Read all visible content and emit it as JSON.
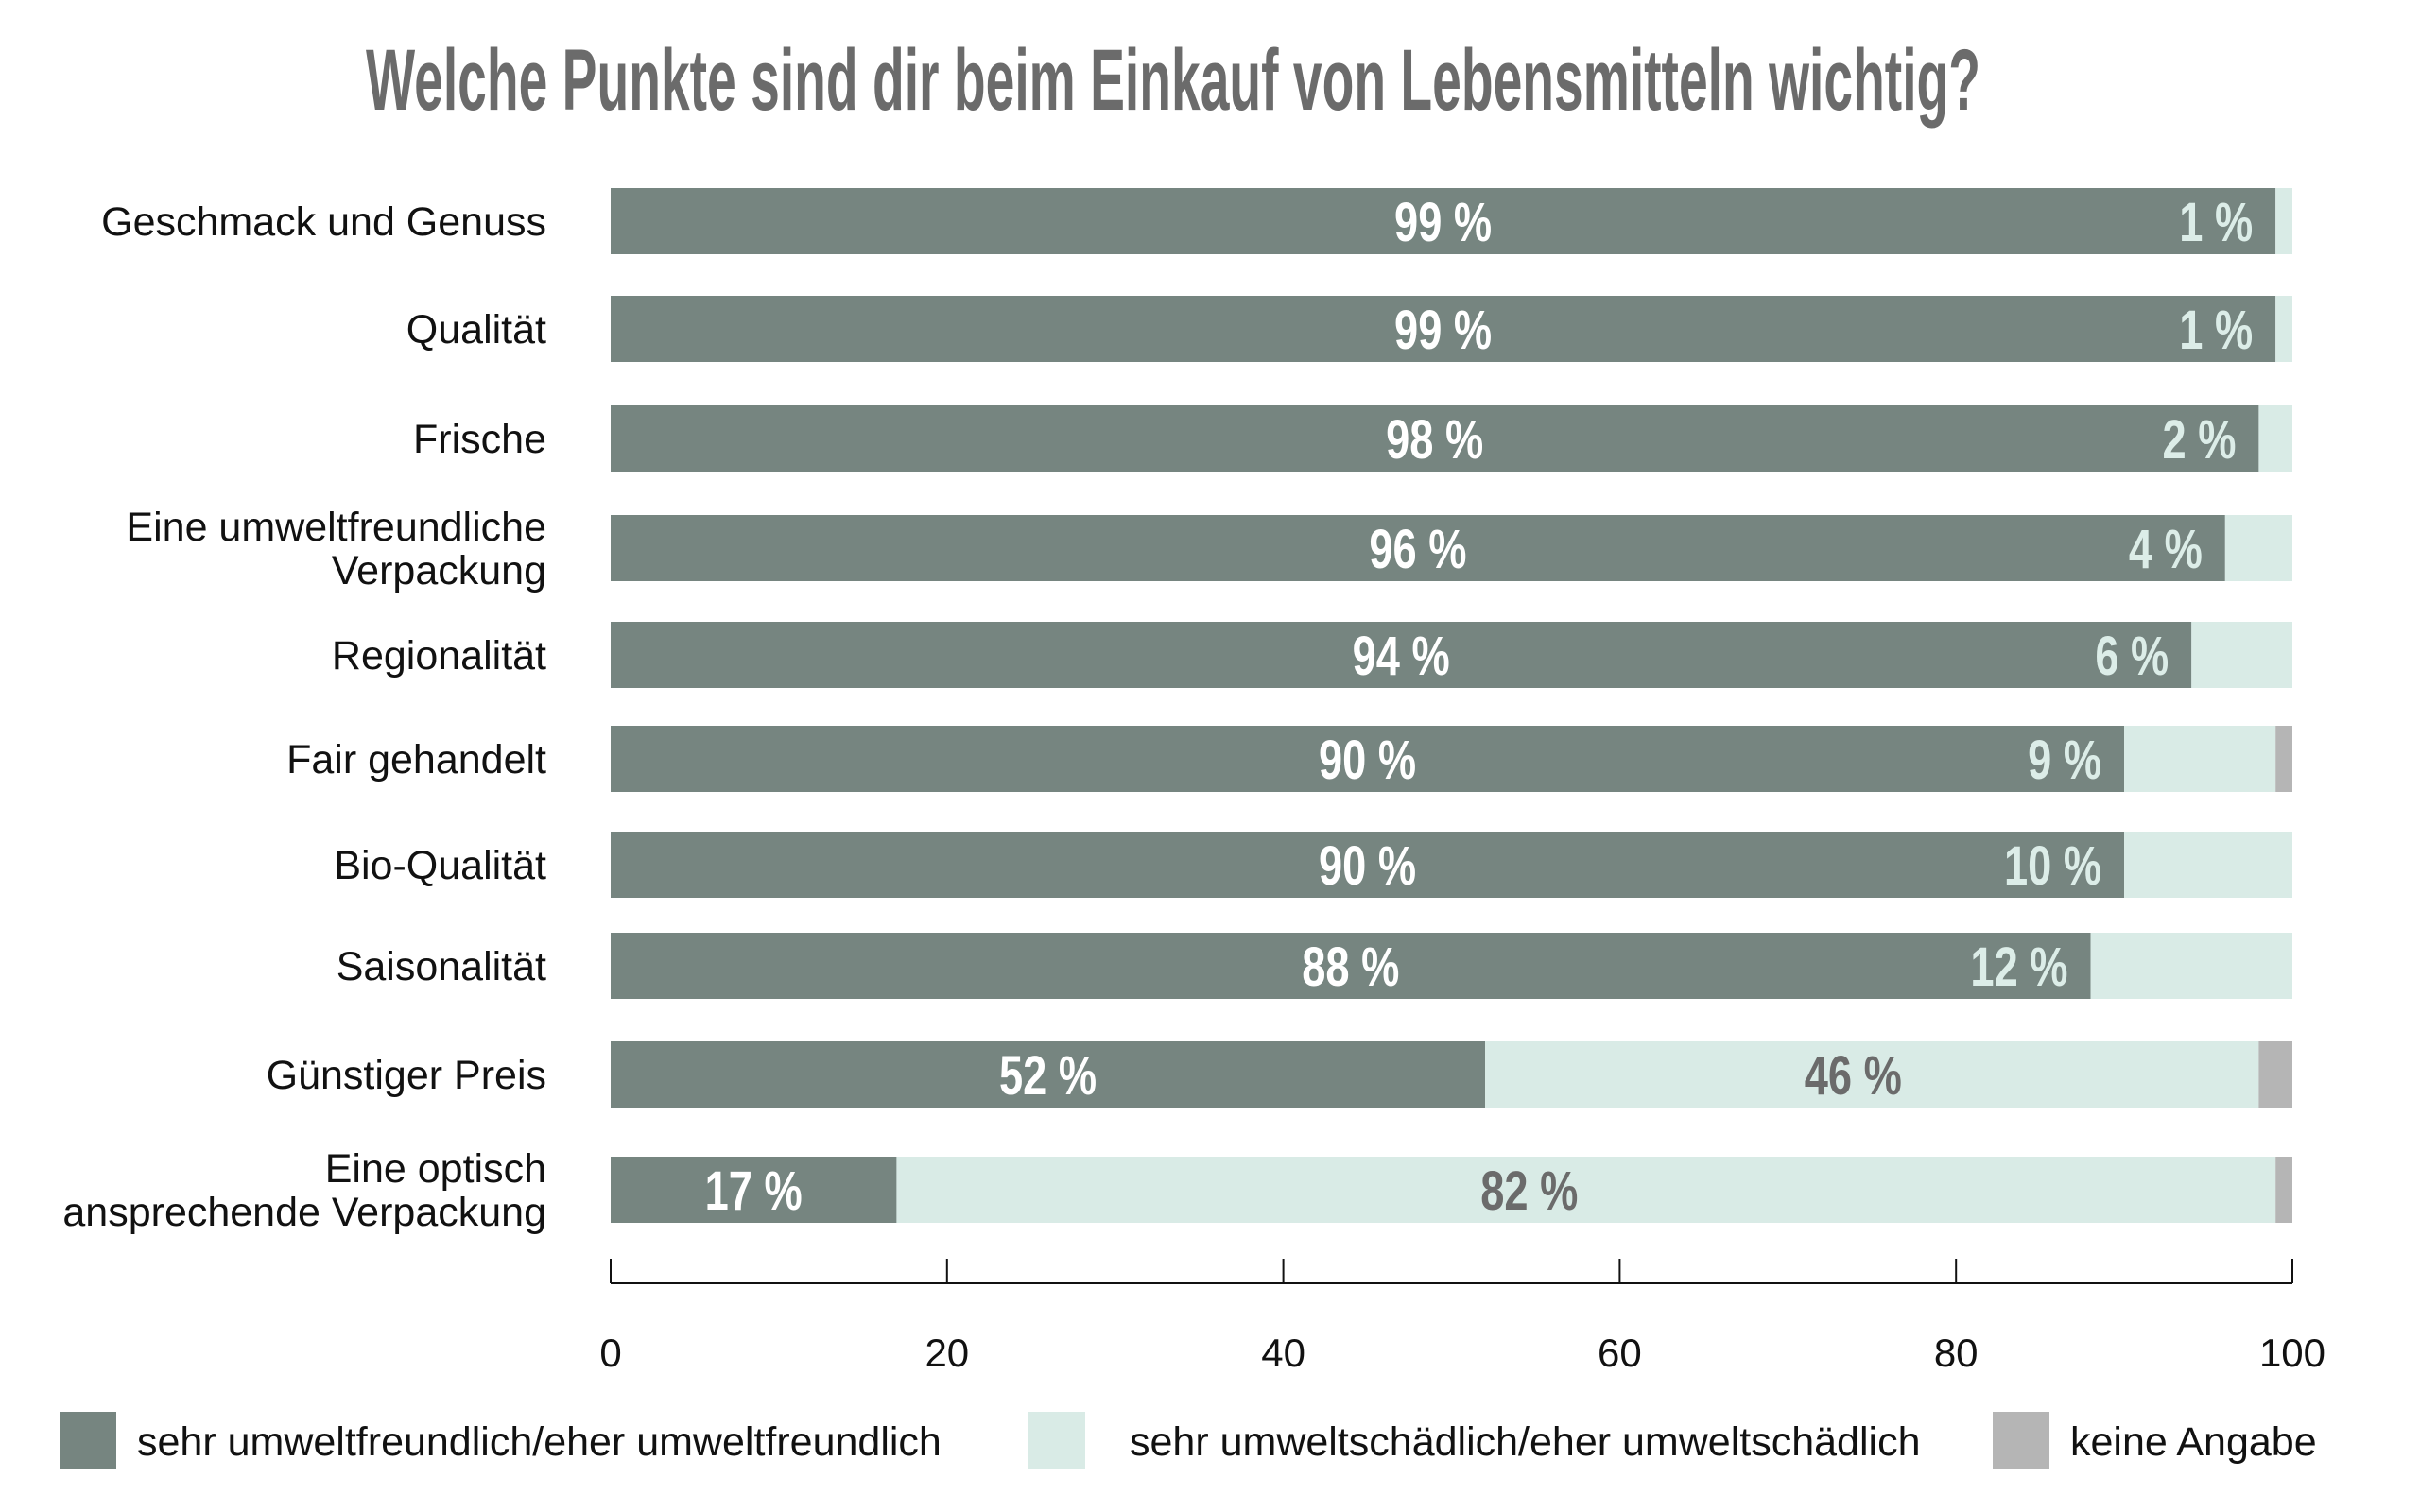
{
  "chart_data": {
    "type": "bar",
    "orientation": "horizontal",
    "stacked": true,
    "title": "Welche Punkte sind dir beim Einkauf von Lebensmitteln wichtig?",
    "xlabel": "",
    "ylabel": "",
    "xlim": [
      0,
      100
    ],
    "xticks": [
      0,
      20,
      40,
      60,
      80,
      100
    ],
    "tick_labels": [
      "0",
      "20",
      "40",
      "60",
      "80",
      "100"
    ],
    "grid": false,
    "legend_position": "bottom",
    "categories": [
      [
        "Geschmack und Genuss"
      ],
      [
        "Qualität"
      ],
      [
        "Frische"
      ],
      [
        "Eine umweltfreundliche",
        "Verpackung"
      ],
      [
        "Regionalität"
      ],
      [
        "Fair gehandelt"
      ],
      [
        "Bio-Qualität"
      ],
      [
        "Saisonalität"
      ],
      [
        "Günstiger Preis"
      ],
      [
        "Eine optisch",
        "ansprechende Verpackung"
      ]
    ],
    "series": [
      {
        "name": "sehr umweltfreundlich/eher umweltfreundlich",
        "color": "#768580",
        "values": [
          99,
          99,
          98,
          96,
          94,
          90,
          90,
          88,
          52,
          17
        ],
        "labels": [
          "99 %",
          "99 %",
          "98 %",
          "96 %",
          "94 %",
          "90 %",
          "90 %",
          "88 %",
          "52 %",
          "17 %"
        ]
      },
      {
        "name": "sehr umweltschädlich/eher umweltschädlich",
        "color": "#d9ebe6",
        "values": [
          1,
          1,
          2,
          4,
          6,
          9,
          10,
          12,
          46,
          82
        ],
        "labels": [
          "1 %",
          "1 %",
          "2 %",
          "4 %",
          "6 %",
          "9 %",
          "10 %",
          "12 %",
          "46 %",
          "82 %"
        ]
      },
      {
        "name": "keine Angabe",
        "color": "#b5b5b5",
        "values": [
          0,
          0,
          0,
          0,
          0,
          1,
          0,
          0,
          2,
          1
        ],
        "labels": []
      }
    ],
    "label_colors": {
      "on_dark": "#ffffff",
      "second_on_dark": "#dcede8",
      "on_light": "#6b6b6b"
    }
  }
}
